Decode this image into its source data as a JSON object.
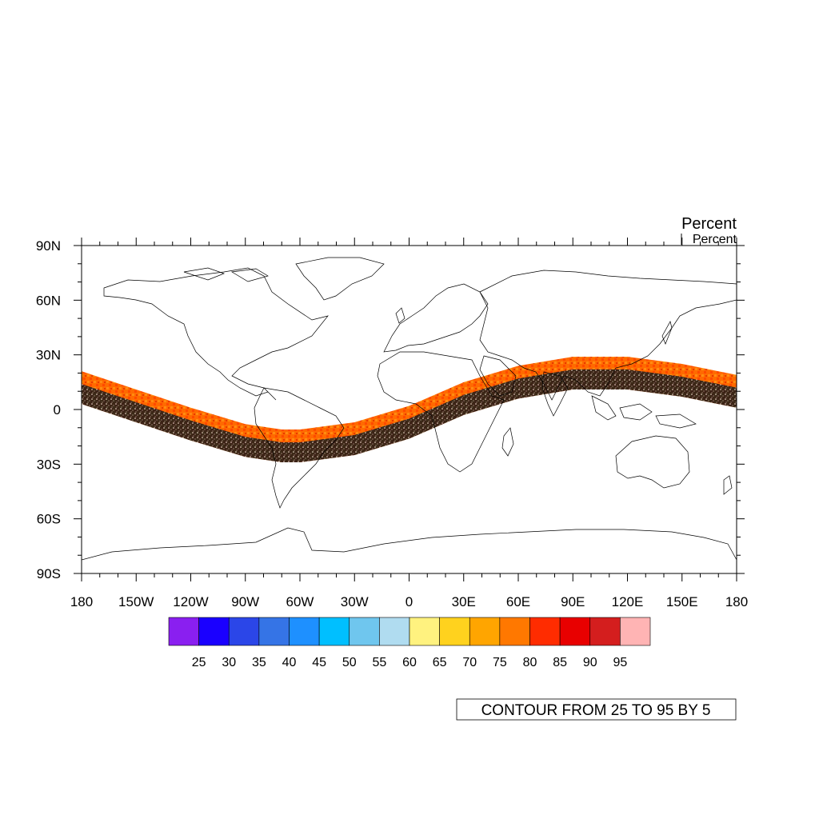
{
  "title_right": "Percent",
  "units_label": "Percent",
  "map": {
    "projection": "cylindrical-equidistant",
    "lon_range": [
      -180,
      180
    ],
    "lat_range": [
      -90,
      90
    ],
    "lat_tick_labels": [
      "90N",
      "60N",
      "30N",
      "0",
      "30S",
      "60S",
      "90S"
    ],
    "lat_tick_values": [
      90,
      60,
      30,
      0,
      -30,
      -60,
      -90
    ],
    "lon_tick_labels": [
      "180",
      "150W",
      "120W",
      "90W",
      "60W",
      "30W",
      "0",
      "30E",
      "60E",
      "90E",
      "120E",
      "150E",
      "180"
    ],
    "lon_tick_values": [
      -180,
      -150,
      -120,
      -90,
      -60,
      -30,
      0,
      30,
      60,
      90,
      120,
      150,
      180
    ],
    "swath": {
      "description_color_scale": "filled data swath following a sinusoidal satellite track",
      "center_track_lon": [
        -180,
        -150,
        -120,
        -90,
        -70,
        -60,
        -30,
        0,
        30,
        60,
        90,
        120,
        150,
        180
      ],
      "center_track_lat": [
        12,
        2,
        -8,
        -17,
        -20,
        -20,
        -16,
        -7,
        6,
        15,
        20,
        20,
        16,
        10
      ],
      "half_width_deg": 9
    }
  },
  "colorbar": {
    "colors": [
      "#8a1ff0",
      "#1a00ff",
      "#2b46e8",
      "#3574e6",
      "#1e90ff",
      "#00bfff",
      "#6fc6ee",
      "#b0dcf0",
      "#fff27f",
      "#ffd21e",
      "#ffa500",
      "#ff7800",
      "#ff2c00",
      "#e80000",
      "#d41e1e",
      "#ffb4b4"
    ],
    "labels": [
      "25",
      "30",
      "35",
      "40",
      "45",
      "50",
      "55",
      "60",
      "65",
      "70",
      "75",
      "80",
      "85",
      "90",
      "95"
    ]
  },
  "contour_info": "CONTOUR FROM 25 TO 95 BY 5"
}
